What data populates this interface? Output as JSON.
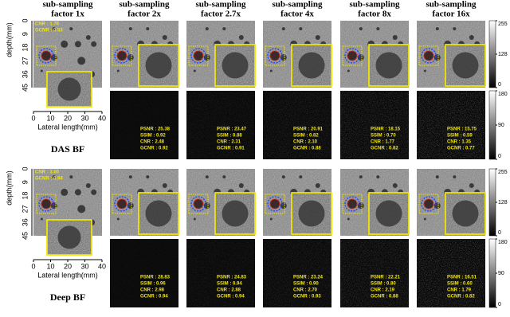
{
  "columns": [
    {
      "line1": "sub-sampling",
      "line2": "factor 1x"
    },
    {
      "line1": "sub-sampling",
      "line2": "factor 2x"
    },
    {
      "line1": "sub-sampling",
      "line2": "factor 2.7x"
    },
    {
      "line1": "sub-sampling",
      "line2": "factor 4x"
    },
    {
      "line1": "sub-sampling",
      "line2": "factor 8x"
    },
    {
      "line1": "sub-sampling",
      "line2": "factor 16x"
    }
  ],
  "depth_axis": {
    "label": "depth(mm)",
    "ticks": [
      "0",
      "9",
      "18",
      "27",
      "36",
      "45"
    ]
  },
  "lateral_axis": {
    "label": "Lateral length(mm)",
    "ticks": [
      "0",
      "10",
      "20",
      "30",
      "40"
    ]
  },
  "colorbars": {
    "image": [
      "255",
      "128",
      "0"
    ],
    "error": [
      "180",
      "90",
      "0"
    ]
  },
  "panels": [
    {
      "label": "DAS BF",
      "reference_metrics": [
        "CNR : 1.76",
        "GCNR : 0.53"
      ],
      "metrics": [
        [
          "PSNR : 25.38",
          "SSIM : 0.92",
          "CNR : 2.48",
          "GCNR : 0.92"
        ],
        [
          "PSNR : 23.47",
          "SSIM : 0.88",
          "CNR : 2.31",
          "GCNR : 0.91"
        ],
        [
          "PSNR : 20.91",
          "SSIM : 0.82",
          "CNR : 2.10",
          "GCNR : 0.88"
        ],
        [
          "PSNR : 18.15",
          "SSIM : 0.70",
          "CNR : 1.77",
          "GCNR : 0.82"
        ],
        [
          "PSNR : 15.75",
          "SSIM : 0.59",
          "CNR : 1.35",
          "GCNR : 0.77"
        ]
      ]
    },
    {
      "label": "Deep BF",
      "reference_metrics": [
        "CNR : 3.60",
        "GCNR : 0.94"
      ],
      "metrics": [
        [
          "PSNR : 28.83",
          "SSIM : 0.96",
          "CNR : 2.98",
          "GCNR : 0.94"
        ],
        [
          "PSNR : 24.83",
          "SSIM : 0.94",
          "CNR : 2.88",
          "GCNR : 0.94"
        ],
        [
          "PSNR : 23.24",
          "SSIM : 0.90",
          "CNR : 2.70",
          "GCNR : 0.93"
        ],
        [
          "PSNR : 22.21",
          "SSIM : 0.80",
          "CNR : 2.19",
          "GCNR : 0.88"
        ],
        [
          "PSNR : 16.51",
          "SSIM : 0.60",
          "CNR : 1.79",
          "GCNR : 0.82"
        ]
      ]
    }
  ]
}
